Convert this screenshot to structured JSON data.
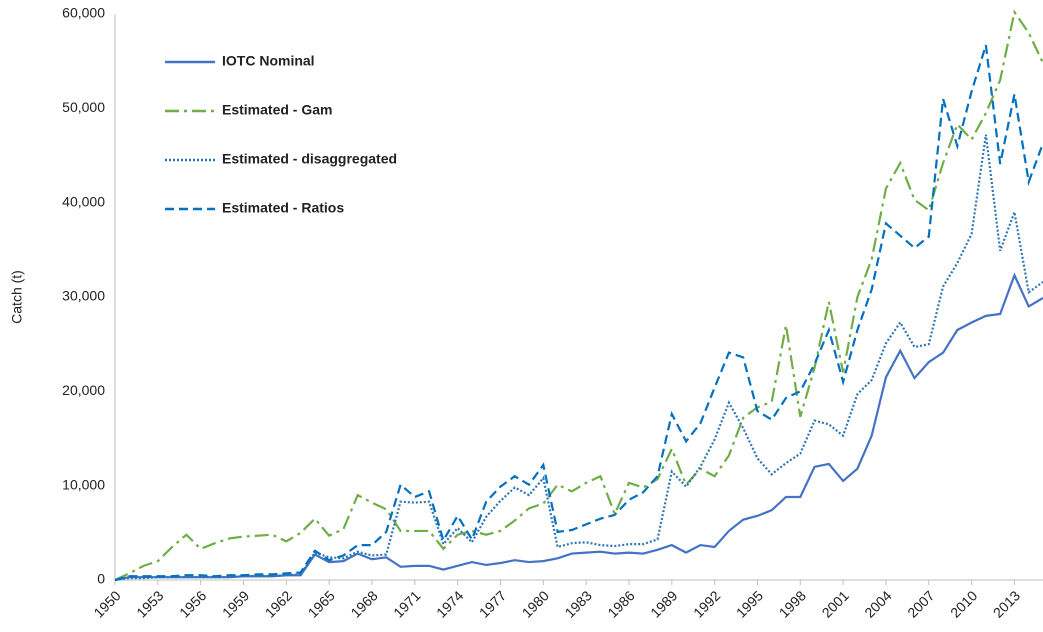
{
  "chart_data": {
    "type": "line",
    "y_label": "Catch (t)",
    "x": [
      1950,
      1951,
      1952,
      1953,
      1954,
      1955,
      1956,
      1957,
      1958,
      1959,
      1960,
      1961,
      1962,
      1963,
      1964,
      1965,
      1966,
      1967,
      1968,
      1969,
      1970,
      1971,
      1972,
      1973,
      1974,
      1975,
      1976,
      1977,
      1978,
      1979,
      1980,
      1981,
      1982,
      1983,
      1984,
      1985,
      1986,
      1987,
      1988,
      1989,
      1990,
      1991,
      1992,
      1993,
      1994,
      1995,
      1996,
      1997,
      1998,
      1999,
      2000,
      2001,
      2002,
      2003,
      2004,
      2005,
      2006,
      2007,
      2008,
      2009,
      2010,
      2011,
      2012,
      2013,
      2014,
      2015
    ],
    "xlim": [
      1950,
      2015
    ],
    "xticks": [
      1950,
      1953,
      1956,
      1959,
      1962,
      1965,
      1968,
      1971,
      1974,
      1977,
      1980,
      1983,
      1986,
      1989,
      1992,
      1995,
      1998,
      2001,
      2004,
      2007,
      2010,
      2013
    ],
    "ylim": [
      0,
      60000
    ],
    "yticks": [
      0,
      {
        "value": 10000,
        "label": "10,000"
      },
      {
        "value": 20000,
        "label": "20,000"
      },
      {
        "value": 30000,
        "label": "30,000"
      },
      {
        "value": 40000,
        "label": "40,000"
      },
      {
        "value": 50000,
        "label": "50,000"
      },
      {
        "value": 60000,
        "label": "60,000"
      }
    ],
    "grid": false,
    "legend": "upper left",
    "series": [
      {
        "name": "IOTC Nominal",
        "color": "#4472c4",
        "line_style": "solid",
        "values": [
          0,
          300,
          300,
          300,
          300,
          300,
          300,
          300,
          300,
          400,
          400,
          400,
          500,
          500,
          2700,
          1900,
          2000,
          2800,
          2200,
          2400,
          1400,
          1500,
          1500,
          1100,
          1500,
          1900,
          1600,
          1800,
          2100,
          1900,
          2000,
          2300,
          2800,
          2900,
          3000,
          2800,
          2900,
          2800,
          3200,
          3700,
          2900,
          3700,
          3500,
          5200,
          6400,
          6800,
          7400,
          8800,
          8800,
          12000,
          12300,
          10500,
          11800,
          15300,
          21500,
          24300,
          21400,
          23100,
          24100,
          26500,
          27300,
          28000,
          28200,
          32300,
          29000,
          29900
        ]
      },
      {
        "name": "Estimated - Gam",
        "color": "#70ad47",
        "line_style": "dashdot",
        "values": [
          0,
          700,
          1500,
          2000,
          3500,
          4800,
          3300,
          3900,
          4400,
          4600,
          4700,
          4800,
          4100,
          5000,
          6500,
          4700,
          5400,
          9000,
          8200,
          7500,
          5200,
          5200,
          5200,
          3300,
          4800,
          5200,
          4800,
          5200,
          6300,
          7600,
          8100,
          10100,
          9400,
          10300,
          11000,
          7000,
          10300,
          9800,
          10700,
          13900,
          10100,
          11800,
          11000,
          13200,
          17200,
          18300,
          18900,
          27000,
          17300,
          22500,
          29500,
          22000,
          30000,
          34000,
          41500,
          44200,
          40300,
          39200,
          44200,
          48300,
          46700,
          49500,
          53000,
          60200,
          58000,
          54800
        ]
      },
      {
        "name": "Estimated - disaggregated",
        "color": "#2e75b6",
        "line_style": "dotted",
        "values": [
          0,
          200,
          200,
          300,
          300,
          300,
          300,
          300,
          300,
          400,
          400,
          400,
          500,
          600,
          2900,
          2400,
          2300,
          3000,
          2600,
          2700,
          8300,
          8200,
          8300,
          3800,
          5500,
          4000,
          6700,
          8400,
          9800,
          9000,
          10800,
          3500,
          3900,
          4000,
          3700,
          3600,
          3800,
          3800,
          4300,
          11500,
          9900,
          12000,
          14900,
          18800,
          16100,
          12900,
          11200,
          12400,
          13400,
          16900,
          16500,
          15300,
          19700,
          21200,
          25100,
          27300,
          24700,
          25000,
          31100,
          33600,
          36700,
          47200,
          34900,
          39000,
          30500,
          31600
        ]
      },
      {
        "name": "Estimated - Ratios",
        "color": "#0070c0",
        "line_style": "dashed",
        "values": [
          0,
          400,
          400,
          400,
          400,
          500,
          500,
          400,
          500,
          500,
          600,
          600,
          700,
          800,
          3100,
          2100,
          2600,
          3700,
          3700,
          5100,
          10100,
          8800,
          9400,
          4200,
          6800,
          4300,
          8300,
          9900,
          11000,
          10100,
          12200,
          5100,
          5300,
          5900,
          6500,
          6900,
          8500,
          9300,
          11000,
          17600,
          14700,
          16600,
          20400,
          24100,
          23600,
          17900,
          17000,
          19300,
          20000,
          22900,
          26500,
          21000,
          26500,
          30800,
          37800,
          36500,
          35200,
          36400,
          51000,
          46000,
          51800,
          56700,
          44100,
          51500,
          42200,
          46300
        ]
      }
    ]
  }
}
